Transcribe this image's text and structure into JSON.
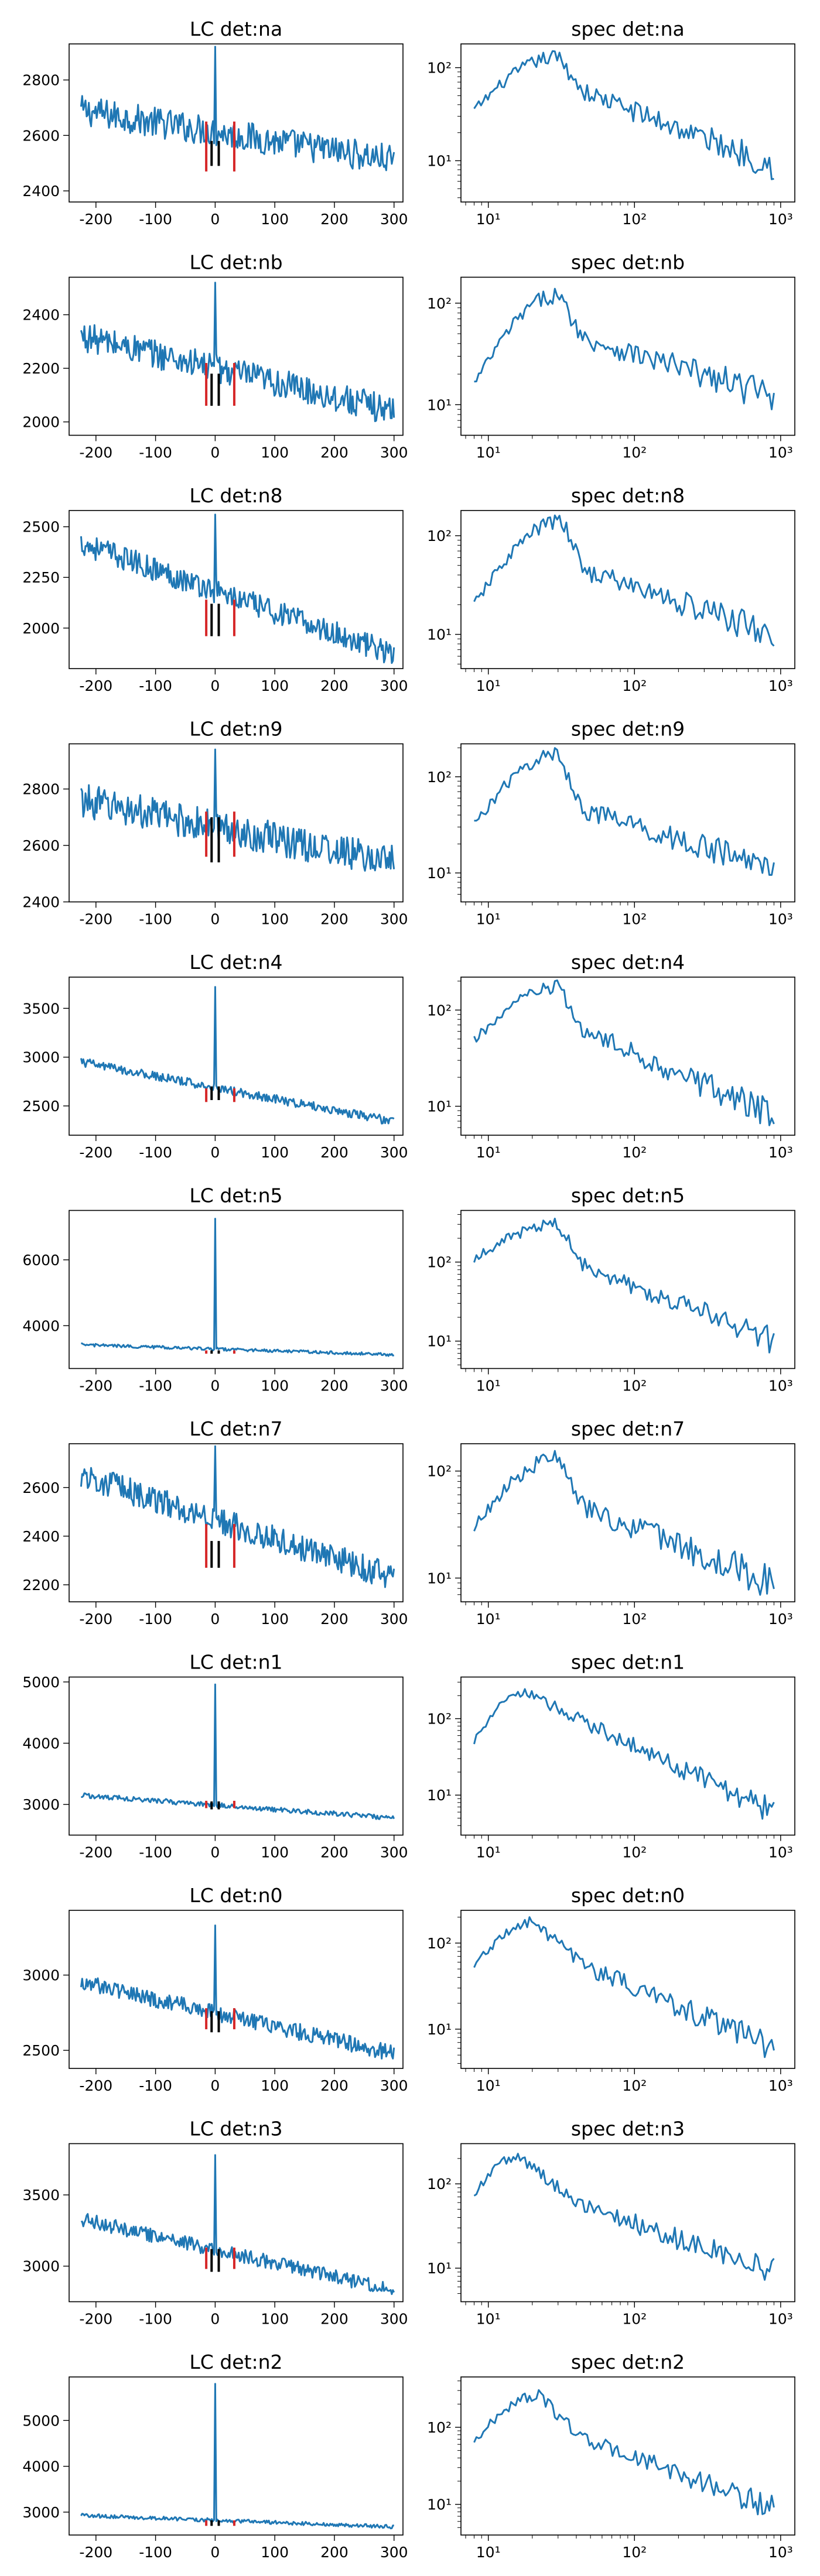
{
  "style": {
    "line_color": "#1f77b4",
    "marker_black": "#000000",
    "marker_red": "#d62728"
  },
  "chart_data": [
    {
      "panel": "lc",
      "type": "line",
      "title": "LC det:na",
      "xlim": [
        -245,
        315
      ],
      "ylim": [
        2360,
        2930
      ],
      "xticks": [
        -200,
        -100,
        0,
        100,
        200,
        300
      ],
      "yticks": [
        2400,
        2600,
        2800
      ],
      "trend": [
        2690,
        2510
      ],
      "noise": 55,
      "peak": 2920,
      "markers": {
        "black": [
          2490,
          2580
        ],
        "red": [
          2470,
          2650
        ]
      }
    },
    {
      "panel": "spec",
      "type": "line",
      "title": "spec det:na",
      "yscale": "log",
      "xscale": "log",
      "xlim": [
        6.5,
        1250
      ],
      "ylim": [
        3.6,
        180
      ],
      "yticks": [
        10,
        100
      ],
      "yticklabels": [
        "10¹",
        "10²"
      ],
      "xticks": [
        10,
        100,
        1000
      ],
      "xticklabels": [
        "10¹",
        "10²",
        "10³"
      ],
      "shape": {
        "rise": 35,
        "peak": 130,
        "peak_x": 30,
        "mid": 55,
        "end": 9
      }
    },
    {
      "panel": "lc",
      "type": "line",
      "title": "LC det:nb",
      "xlim": [
        -245,
        315
      ],
      "ylim": [
        1950,
        2540
      ],
      "xticks": [
        -200,
        -100,
        0,
        100,
        200,
        300
      ],
      "yticks": [
        2000,
        2200,
        2400
      ],
      "trend": [
        2320,
        2040
      ],
      "noise": 55,
      "peak": 2520,
      "markers": {
        "black": [
          2060,
          2180
        ],
        "red": [
          2060,
          2220
        ]
      }
    },
    {
      "panel": "spec",
      "type": "line",
      "title": "spec det:nb",
      "yscale": "log",
      "xscale": "log",
      "xlim": [
        6.5,
        1250
      ],
      "ylim": [
        5,
        180
      ],
      "yticks": [
        10,
        100
      ],
      "yticklabels": [
        "10¹",
        "10²"
      ],
      "xticks": [
        10,
        100,
        1000
      ],
      "xticklabels": [
        "10¹",
        "10²",
        "10³"
      ],
      "shape": {
        "rise": 16,
        "peak": 120,
        "peak_x": 30,
        "mid": 45,
        "end": 12
      }
    },
    {
      "panel": "lc",
      "type": "line",
      "title": "LC det:n8",
      "xlim": [
        -245,
        315
      ],
      "ylim": [
        1800,
        2580
      ],
      "xticks": [
        -200,
        -100,
        0,
        100,
        200,
        300
      ],
      "yticks": [
        2000,
        2250,
        2500
      ],
      "trend": [
        2420,
        1870
      ],
      "noise": 60,
      "peak": 2560,
      "markers": {
        "black": [
          1960,
          2120
        ],
        "red": [
          1960,
          2140
        ]
      }
    },
    {
      "panel": "spec",
      "type": "line",
      "title": "spec det:n8",
      "yscale": "log",
      "xscale": "log",
      "xlim": [
        6.5,
        1250
      ],
      "ylim": [
        4.5,
        180
      ],
      "yticks": [
        10,
        100
      ],
      "yticklabels": [
        "10¹",
        "10²"
      ],
      "xticks": [
        10,
        100,
        1000
      ],
      "xticklabels": [
        "10¹",
        "10²",
        "10³"
      ],
      "shape": {
        "rise": 20,
        "peak": 140,
        "peak_x": 32,
        "mid": 45,
        "end": 10
      }
    },
    {
      "panel": "lc",
      "type": "line",
      "title": "LC det:n9",
      "xlim": [
        -245,
        315
      ],
      "ylim": [
        2400,
        2960
      ],
      "xticks": [
        -200,
        -100,
        0,
        100,
        200,
        300
      ],
      "yticks": [
        2400,
        2600,
        2800
      ],
      "trend": [
        2760,
        2540
      ],
      "noise": 60,
      "peak": 2940,
      "markers": {
        "black": [
          2540,
          2700
        ],
        "red": [
          2560,
          2720
        ]
      }
    },
    {
      "panel": "spec",
      "type": "line",
      "title": "spec det:n9",
      "yscale": "log",
      "xscale": "log",
      "xlim": [
        6.5,
        1250
      ],
      "ylim": [
        5,
        220
      ],
      "yticks": [
        10,
        100
      ],
      "yticklabels": [
        "10¹",
        "10²"
      ],
      "xticks": [
        10,
        100,
        1000
      ],
      "xticklabels": [
        "10¹",
        "10²",
        "10³"
      ],
      "shape": {
        "rise": 32,
        "peak": 170,
        "peak_x": 30,
        "mid": 45,
        "end": 11
      }
    },
    {
      "panel": "lc",
      "type": "line",
      "title": "LC det:n4",
      "xlim": [
        -245,
        315
      ],
      "ylim": [
        2200,
        3820
      ],
      "xticks": [
        -200,
        -100,
        0,
        100,
        200,
        300
      ],
      "yticks": [
        2500,
        3000,
        3500
      ],
      "trend": [
        2950,
        2340
      ],
      "noise": 45,
      "peak": 3720,
      "markers": {
        "black": [
          2560,
          2700
        ],
        "red": [
          2540,
          2680
        ]
      }
    },
    {
      "panel": "spec",
      "type": "line",
      "title": "spec det:n4",
      "yscale": "log",
      "xscale": "log",
      "xlim": [
        6.5,
        1250
      ],
      "ylim": [
        5,
        220
      ],
      "yticks": [
        10,
        100
      ],
      "yticklabels": [
        "10¹",
        "10²"
      ],
      "xticks": [
        10,
        100,
        1000
      ],
      "xticklabels": [
        "10¹",
        "10²",
        "10³"
      ],
      "shape": {
        "rise": 48,
        "peak": 170,
        "peak_x": 30,
        "mid": 60,
        "end": 8
      }
    },
    {
      "panel": "lc",
      "type": "line",
      "title": "LC det:n5",
      "xlim": [
        -245,
        315
      ],
      "ylim": [
        2700,
        7500
      ],
      "xticks": [
        -200,
        -100,
        0,
        100,
        200,
        300
      ],
      "yticks": [
        4000,
        6000
      ],
      "trend": [
        3420,
        3120
      ],
      "noise": 45,
      "peak": 7250,
      "markers": {
        "black": [
          3150,
          3250
        ],
        "red": [
          3150,
          3250
        ]
      }
    },
    {
      "panel": "spec",
      "type": "line",
      "title": "spec det:n5",
      "yscale": "log",
      "xscale": "log",
      "xlim": [
        6.5,
        1250
      ],
      "ylim": [
        4.5,
        450
      ],
      "yticks": [
        10,
        100
      ],
      "yticklabels": [
        "10¹",
        "10²"
      ],
      "xticks": [
        10,
        100,
        1000
      ],
      "xticklabels": [
        "10¹",
        "10²",
        "10³"
      ],
      "shape": {
        "rise": 110,
        "peak": 300,
        "peak_x": 30,
        "mid": 90,
        "end": 10
      }
    },
    {
      "panel": "lc",
      "type": "line",
      "title": "LC det:n7",
      "xlim": [
        -245,
        315
      ],
      "ylim": [
        2130,
        2780
      ],
      "xticks": [
        -200,
        -100,
        0,
        100,
        200,
        300
      ],
      "yticks": [
        2200,
        2400,
        2600
      ],
      "trend": [
        2650,
        2230
      ],
      "noise": 55,
      "peak": 2770,
      "markers": {
        "black": [
          2270,
          2380
        ],
        "red": [
          2270,
          2450
        ]
      }
    },
    {
      "panel": "spec",
      "type": "line",
      "title": "spec det:n7",
      "yscale": "log",
      "xscale": "log",
      "xlim": [
        6.5,
        1250
      ],
      "ylim": [
        6,
        180
      ],
      "yticks": [
        10,
        100
      ],
      "yticklabels": [
        "10¹",
        "10²"
      ],
      "xticks": [
        10,
        100,
        1000
      ],
      "xticklabels": [
        "10¹",
        "10²",
        "10³"
      ],
      "shape": {
        "rise": 30,
        "peak": 130,
        "peak_x": 30,
        "mid": 45,
        "end": 9
      }
    },
    {
      "panel": "lc",
      "type": "line",
      "title": "LC det:n1",
      "xlim": [
        -245,
        315
      ],
      "ylim": [
        2500,
        5080
      ],
      "xticks": [
        -200,
        -100,
        0,
        100,
        200,
        300
      ],
      "yticks": [
        3000,
        4000,
        5000
      ],
      "trend": [
        3150,
        2780
      ],
      "noise": 40,
      "peak": 4960,
      "markers": {
        "black": [
          2920,
          3050
        ],
        "red": [
          2940,
          3060
        ]
      }
    },
    {
      "panel": "spec",
      "type": "line",
      "title": "spec det:n1",
      "yscale": "log",
      "xscale": "log",
      "xlim": [
        6.5,
        1250
      ],
      "ylim": [
        3,
        350
      ],
      "yticks": [
        10,
        100
      ],
      "yticklabels": [
        "10¹",
        "10²"
      ],
      "xticks": [
        10,
        100,
        1000
      ],
      "xticklabels": [
        "10¹",
        "10²",
        "10³"
      ],
      "shape": {
        "rise": 50,
        "peak": 220,
        "peak_x": 18,
        "mid": 90,
        "end": 6
      }
    },
    {
      "panel": "lc",
      "type": "line",
      "title": "LC det:n0",
      "xlim": [
        -245,
        315
      ],
      "ylim": [
        2380,
        3430
      ],
      "xticks": [
        -200,
        -100,
        0,
        100,
        200,
        300
      ],
      "yticks": [
        2500,
        3000
      ],
      "trend": [
        2950,
        2480
      ],
      "noise": 55,
      "peak": 3330,
      "markers": {
        "black": [
          2620,
          2760
        ],
        "red": [
          2640,
          2780
        ]
      }
    },
    {
      "panel": "spec",
      "type": "line",
      "title": "spec det:n0",
      "yscale": "log",
      "xscale": "log",
      "xlim": [
        6.5,
        1250
      ],
      "ylim": [
        3.5,
        240
      ],
      "yticks": [
        10,
        100
      ],
      "yticklabels": [
        "10¹",
        "10²"
      ],
      "xticks": [
        10,
        100,
        1000
      ],
      "xticklabels": [
        "10¹",
        "10²",
        "10³"
      ],
      "shape": {
        "rise": 55,
        "peak": 170,
        "peak_x": 20,
        "mid": 55,
        "end": 6
      }
    },
    {
      "panel": "lc",
      "type": "line",
      "title": "LC det:n3",
      "xlim": [
        -245,
        315
      ],
      "ylim": [
        2750,
        3860
      ],
      "xticks": [
        -200,
        -100,
        0,
        100,
        200,
        300
      ],
      "yticks": [
        3000,
        3500
      ],
      "trend": [
        3330,
        2830
      ],
      "noise": 50,
      "peak": 3780,
      "markers": {
        "black": [
          2960,
          3120
        ],
        "red": [
          2980,
          3130
        ]
      }
    },
    {
      "panel": "spec",
      "type": "line",
      "title": "spec det:n3",
      "yscale": "log",
      "xscale": "log",
      "xlim": [
        6.5,
        1250
      ],
      "ylim": [
        4,
        300
      ],
      "yticks": [
        10,
        100
      ],
      "yticklabels": [
        "10¹",
        "10²"
      ],
      "xticks": [
        10,
        100,
        1000
      ],
      "xticklabels": [
        "10¹",
        "10²",
        "10³"
      ],
      "shape": {
        "rise": 75,
        "peak": 210,
        "peak_x": 16,
        "mid": 55,
        "end": 9
      }
    },
    {
      "panel": "lc",
      "type": "line",
      "title": "LC det:n2",
      "xlim": [
        -245,
        315
      ],
      "ylim": [
        2500,
        5950
      ],
      "xticks": [
        -200,
        -100,
        0,
        100,
        200,
        300
      ],
      "yticks": [
        3000,
        4000,
        5000
      ],
      "trend": [
        2930,
        2680
      ],
      "noise": 40,
      "peak": 5800,
      "markers": {
        "black": [
          2700,
          2820
        ],
        "red": [
          2700,
          2820
        ]
      }
    },
    {
      "panel": "spec",
      "type": "line",
      "title": "spec det:n2",
      "yscale": "log",
      "xscale": "log",
      "xlim": [
        6.5,
        1250
      ],
      "ylim": [
        4,
        450
      ],
      "yticks": [
        10,
        100
      ],
      "yticklabels": [
        "10¹",
        "10²"
      ],
      "xticks": [
        10,
        100,
        1000
      ],
      "xticklabels": [
        "10¹",
        "10²",
        "10³"
      ],
      "shape": {
        "rise": 65,
        "peak": 260,
        "peak_x": 22,
        "mid": 70,
        "end": 9
      }
    }
  ]
}
